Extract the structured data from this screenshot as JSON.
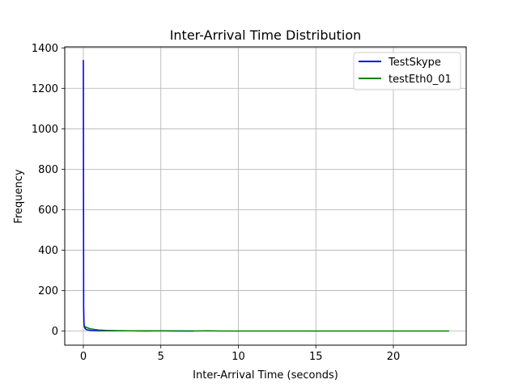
{
  "chart_data": {
    "type": "line",
    "title": "Inter-Arrival Time Distribution",
    "xlabel": "Inter-Arrival Time (seconds)",
    "ylabel": "Frequency",
    "xlim": [
      -1.2,
      24.7
    ],
    "ylim": [
      -70,
      1405
    ],
    "xticks": [
      0,
      5,
      10,
      15,
      20
    ],
    "yticks": [
      0,
      200,
      400,
      600,
      800,
      1000,
      1200,
      1400
    ],
    "grid": true,
    "legend_position": "top-right",
    "series": [
      {
        "name": "TestSkype",
        "color": "#0000ff",
        "x": [
          0.0,
          0.01,
          0.02,
          0.04,
          0.06,
          0.1,
          0.15,
          0.2,
          0.3,
          0.5,
          0.8,
          1.2,
          2.0,
          3.0,
          4.0,
          5.0,
          6.0,
          7.1
        ],
        "y": [
          1340,
          700,
          120,
          40,
          22,
          15,
          10,
          7,
          5,
          3,
          2,
          1,
          1,
          1,
          0,
          1,
          0,
          0
        ]
      },
      {
        "name": "testEth0_01",
        "color": "#008000",
        "x": [
          0.0,
          0.1,
          0.2,
          0.4,
          0.7,
          1.0,
          1.5,
          2.0,
          3.0,
          5.0,
          7.0,
          8.0,
          9.0,
          12.0,
          15.0,
          18.0,
          21.0,
          23.6
        ],
        "y": [
          25,
          22,
          18,
          12,
          8,
          5,
          3,
          2,
          1,
          1,
          0,
          1,
          0,
          0,
          0,
          0,
          0,
          0
        ]
      }
    ]
  }
}
